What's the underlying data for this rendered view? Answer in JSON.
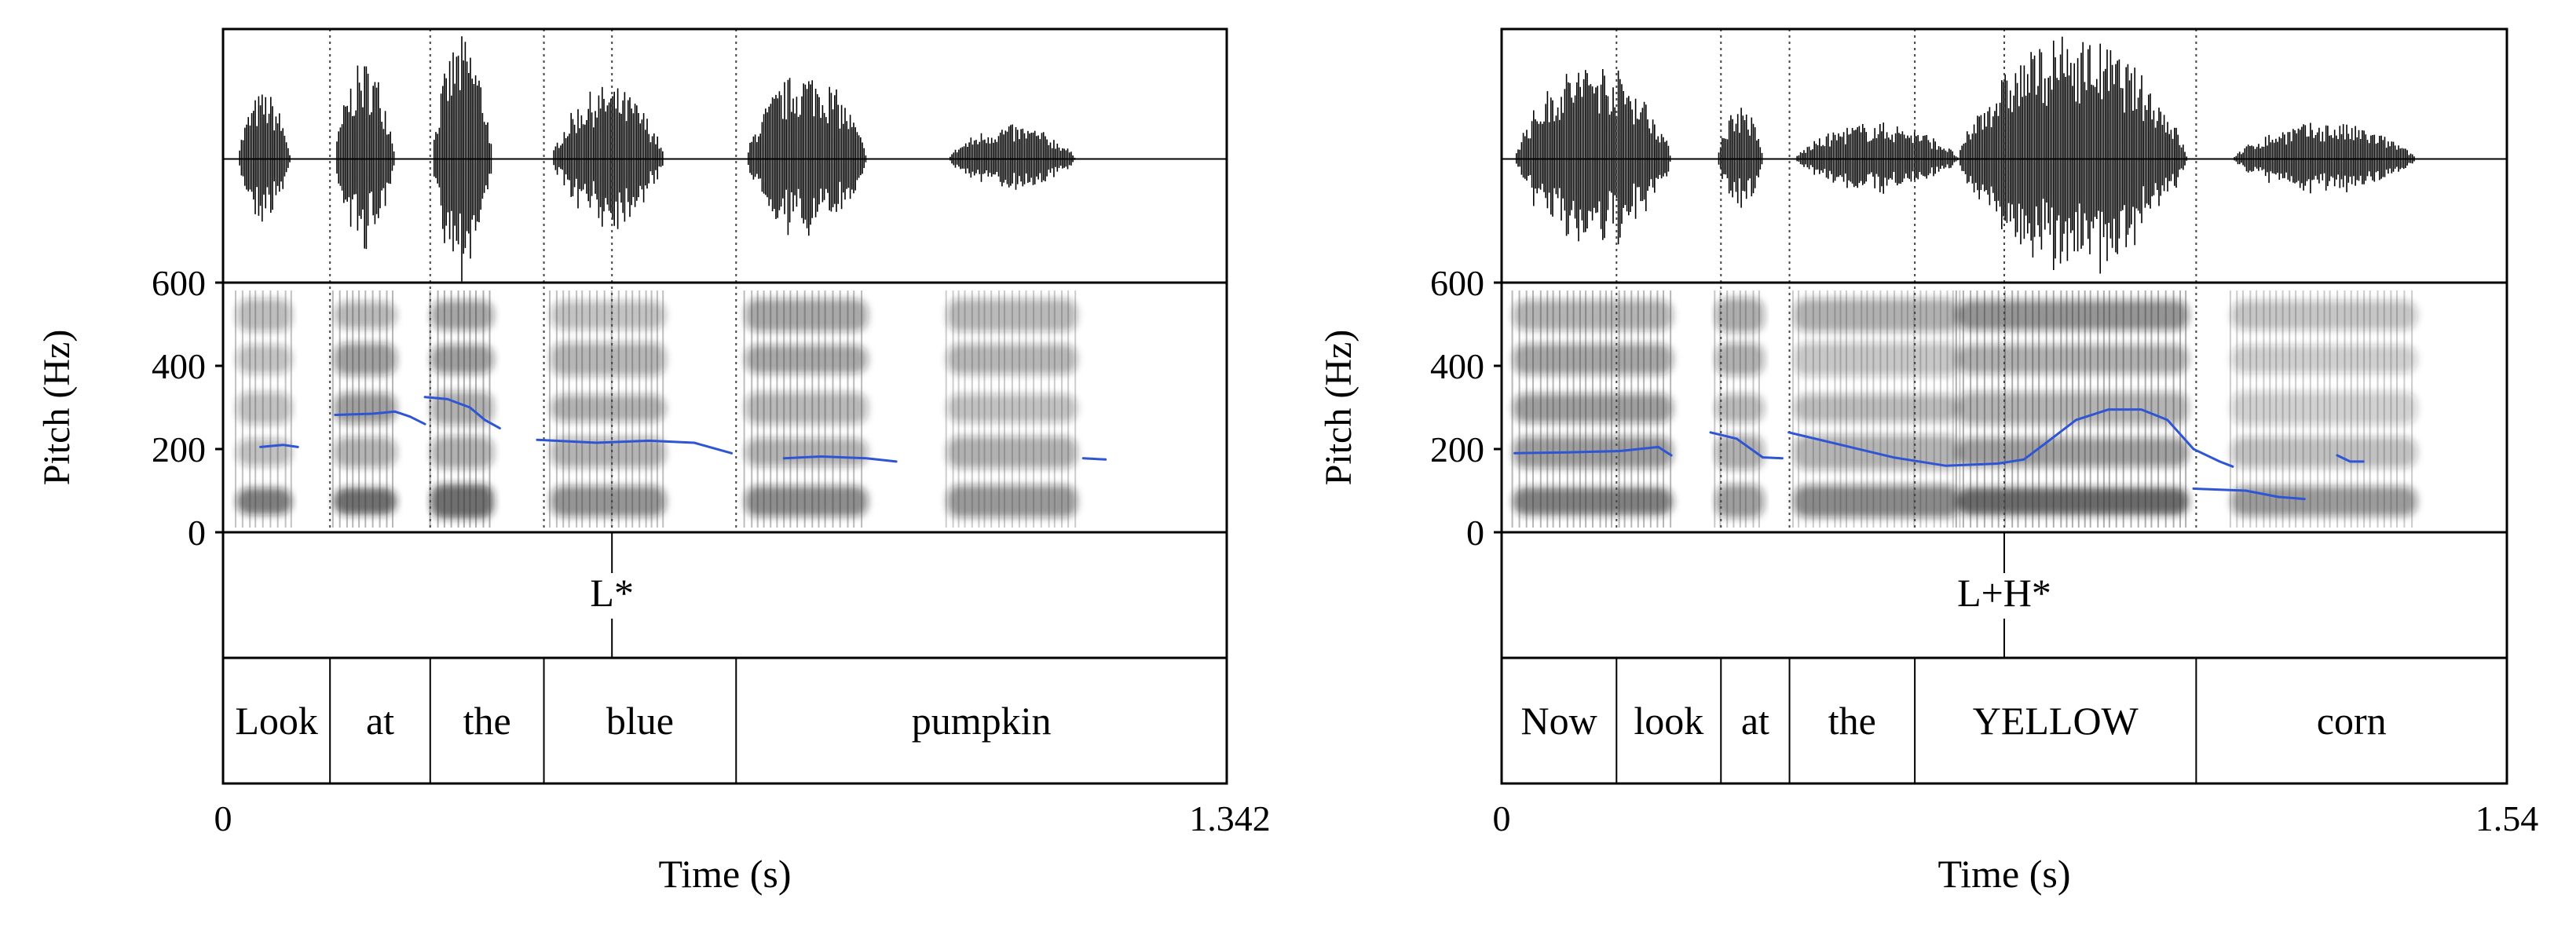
{
  "colors": {
    "pitch_line": "#2f55d4",
    "frame": "#000000",
    "boundary": "#555555",
    "spectrogram_dark": "#111111"
  },
  "chart_data": [
    {
      "type": "line",
      "xlabel": "Time (s)",
      "ylabel": "Pitch (Hz)",
      "x_start_label": "0",
      "x_end_label": "1.342",
      "xlim": [
        0,
        1.342
      ],
      "ylim": [
        0,
        600
      ],
      "yticks": [
        0,
        200,
        400,
        600
      ],
      "tone_tier": [
        {
          "label": "L*",
          "time": 0.52
        }
      ],
      "word_tier": [
        {
          "label": "Look",
          "start": 0,
          "end": 0.143
        },
        {
          "label": "at",
          "start": 0.143,
          "end": 0.277
        },
        {
          "label": "the",
          "start": 0.277,
          "end": 0.429
        },
        {
          "label": "blue",
          "start": 0.429,
          "end": 0.686
        },
        {
          "label": "pumpkin",
          "start": 0.686,
          "end": 1.342
        }
      ],
      "pitch_segments": [
        [
          [
            0.05,
            205
          ],
          [
            0.08,
            210
          ],
          [
            0.1,
            205
          ]
        ],
        [
          [
            0.15,
            282
          ],
          [
            0.2,
            285
          ],
          [
            0.23,
            290
          ],
          [
            0.25,
            278
          ],
          [
            0.27,
            260
          ]
        ],
        [
          [
            0.27,
            325
          ],
          [
            0.3,
            320
          ],
          [
            0.33,
            300
          ],
          [
            0.35,
            270
          ],
          [
            0.37,
            250
          ]
        ],
        [
          [
            0.42,
            222
          ],
          [
            0.5,
            215
          ],
          [
            0.57,
            220
          ],
          [
            0.63,
            215
          ],
          [
            0.68,
            190
          ]
        ],
        [
          [
            0.75,
            178
          ],
          [
            0.8,
            182
          ],
          [
            0.86,
            178
          ],
          [
            0.9,
            170
          ]
        ],
        [
          [
            1.15,
            178
          ],
          [
            1.18,
            175
          ]
        ]
      ],
      "waveform_bursts": [
        {
          "start": 0.02,
          "end": 0.09,
          "amp": 0.55
        },
        {
          "start": 0.15,
          "end": 0.23,
          "amp": 0.8
        },
        {
          "start": 0.28,
          "end": 0.36,
          "amp": 1.0
        },
        {
          "start": 0.44,
          "end": 0.59,
          "amp": 0.6
        },
        {
          "start": 0.7,
          "end": 0.86,
          "amp": 0.72
        },
        {
          "start": 0.97,
          "end": 1.14,
          "amp": 0.28
        }
      ]
    },
    {
      "type": "line",
      "xlabel": "Time (s)",
      "ylabel": "Pitch (Hz)",
      "x_start_label": "0",
      "x_end_label": "1.54",
      "xlim": [
        0,
        1.54
      ],
      "ylim": [
        0,
        600
      ],
      "yticks": [
        0,
        200,
        400,
        600
      ],
      "tone_tier": [
        {
          "label": "L+H*",
          "time": 0.77
        }
      ],
      "word_tier": [
        {
          "label": "Now",
          "start": 0,
          "end": 0.176
        },
        {
          "label": "look",
          "start": 0.176,
          "end": 0.336
        },
        {
          "label": "at",
          "start": 0.336,
          "end": 0.441
        },
        {
          "label": "the",
          "start": 0.441,
          "end": 0.633
        },
        {
          "label": "YELLOW",
          "start": 0.633,
          "end": 1.064
        },
        {
          "label": "corn",
          "start": 1.064,
          "end": 1.54
        }
      ],
      "pitch_segments": [
        [
          [
            0.02,
            190
          ],
          [
            0.1,
            192
          ],
          [
            0.18,
            195
          ],
          [
            0.24,
            205
          ],
          [
            0.26,
            185
          ]
        ],
        [
          [
            0.32,
            240
          ],
          [
            0.36,
            225
          ],
          [
            0.4,
            180
          ],
          [
            0.43,
            178
          ]
        ],
        [
          [
            0.44,
            240
          ],
          [
            0.52,
            210
          ],
          [
            0.6,
            180
          ],
          [
            0.68,
            160
          ],
          [
            0.76,
            165
          ],
          [
            0.8,
            175
          ],
          [
            0.83,
            210
          ],
          [
            0.88,
            270
          ],
          [
            0.93,
            295
          ],
          [
            0.98,
            295
          ],
          [
            1.02,
            270
          ],
          [
            1.06,
            200
          ],
          [
            1.1,
            170
          ],
          [
            1.12,
            158
          ]
        ],
        [
          [
            1.06,
            105
          ],
          [
            1.14,
            100
          ],
          [
            1.19,
            85
          ],
          [
            1.23,
            80
          ]
        ],
        [
          [
            1.28,
            185
          ],
          [
            1.3,
            170
          ],
          [
            1.32,
            170
          ]
        ]
      ],
      "waveform_bursts": [
        {
          "start": 0.02,
          "end": 0.26,
          "amp": 0.8
        },
        {
          "start": 0.33,
          "end": 0.4,
          "amp": 0.45
        },
        {
          "start": 0.45,
          "end": 0.7,
          "amp": 0.3
        },
        {
          "start": 0.7,
          "end": 1.05,
          "amp": 1.0
        },
        {
          "start": 1.12,
          "end": 1.4,
          "amp": 0.3
        }
      ]
    }
  ]
}
